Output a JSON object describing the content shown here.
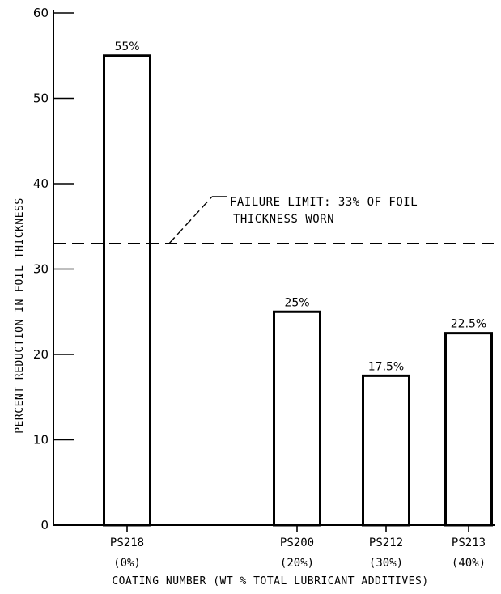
{
  "chart_data": {
    "type": "bar",
    "categories": [
      "PS218",
      "PS200",
      "PS212",
      "PS213"
    ],
    "category_sublabels": [
      "(0%)",
      "(20%)",
      "(30%)",
      "(40%)"
    ],
    "lubricant_additive_pct": [
      0,
      20,
      30,
      40
    ],
    "values": [
      55,
      25,
      17.5,
      22.5
    ],
    "data_labels": [
      "55%",
      "25%",
      "17.5%",
      "22.5%"
    ],
    "title": "",
    "xlabel": "COATING NUMBER (WT % TOTAL LUBRICANT ADDITIVES)",
    "ylabel": "PERCENT REDUCTION IN FOIL THICKNESS",
    "ylim": [
      0,
      60
    ],
    "yticks": [
      0,
      10,
      20,
      30,
      40,
      50,
      60
    ],
    "grid": false,
    "reference_line": {
      "value": 33,
      "style": "dashed",
      "label_line1": "FAILURE LIMIT: 33% OF FOIL",
      "label_line2": "THICKNESS WORN"
    }
  }
}
